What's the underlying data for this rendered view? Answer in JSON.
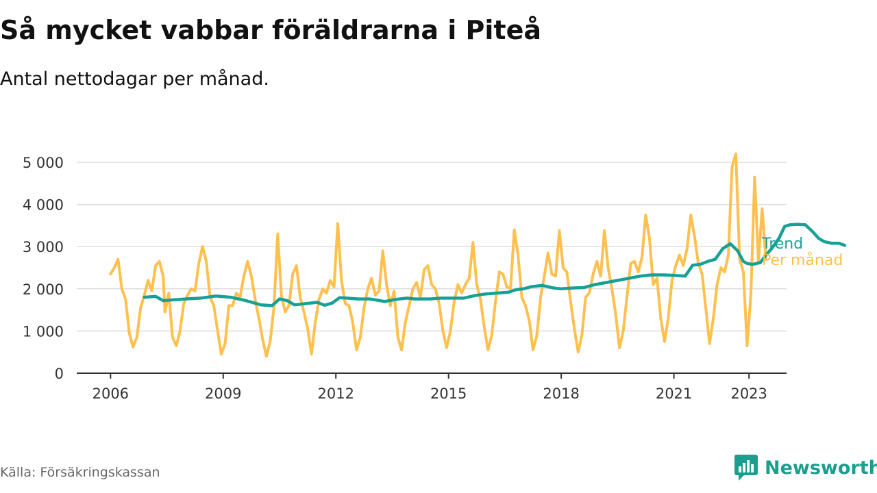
{
  "title": "Så mycket vabbar föräldrarna i Piteå",
  "subtitle": "Antal nettodagar per månad.",
  "source": "Källa: Försäkringskassan",
  "brand": {
    "name": "Newsworthy",
    "icon": "bar-chart-speech-bubble-icon",
    "color": "#1a9e8f"
  },
  "chart_data": {
    "type": "line",
    "x_unit": "year (decimal)",
    "xlim": [
      2005.1,
      2024.0
    ],
    "ylim": [
      0,
      5000
    ],
    "x_ticks": [
      {
        "value": 2006,
        "label": "2006"
      },
      {
        "value": 2009,
        "label": "2009"
      },
      {
        "value": 2012,
        "label": "2012"
      },
      {
        "value": 2015,
        "label": "2015"
      },
      {
        "value": 2018,
        "label": "2018"
      },
      {
        "value": 2021,
        "label": "2021"
      },
      {
        "value": 2023,
        "label": "2023"
      }
    ],
    "y_ticks": [
      {
        "value": 0,
        "label": "0"
      },
      {
        "value": 1000,
        "label": "1 000"
      },
      {
        "value": 2000,
        "label": "2 000"
      },
      {
        "value": 3000,
        "label": "3 000"
      },
      {
        "value": 4000,
        "label": "4 000"
      },
      {
        "value": 5000,
        "label": "5 000"
      }
    ],
    "grid": "horizontal",
    "legend": "inline-right",
    "series": [
      {
        "name": "Per månad",
        "color": "#ffc04d",
        "points": [
          [
            2006.0,
            2350
          ],
          [
            2006.1,
            2500
          ],
          [
            2006.2,
            2700
          ],
          [
            2006.3,
            2000
          ],
          [
            2006.4,
            1750
          ],
          [
            2006.5,
            950
          ],
          [
            2006.6,
            620
          ],
          [
            2006.7,
            850
          ],
          [
            2006.8,
            1550
          ],
          [
            2006.9,
            1850
          ],
          [
            2007.0,
            2200
          ],
          [
            2007.1,
            1950
          ],
          [
            2007.2,
            2550
          ],
          [
            2007.3,
            2650
          ],
          [
            2007.4,
            2300
          ],
          [
            2007.45,
            1450
          ],
          [
            2007.55,
            1900
          ],
          [
            2007.65,
            850
          ],
          [
            2007.75,
            650
          ],
          [
            2007.85,
            1000
          ],
          [
            2007.95,
            1650
          ],
          [
            2008.05,
            1850
          ],
          [
            2008.15,
            2000
          ],
          [
            2008.25,
            1950
          ],
          [
            2008.35,
            2600
          ],
          [
            2008.45,
            3000
          ],
          [
            2008.55,
            2650
          ],
          [
            2008.65,
            1800
          ],
          [
            2008.75,
            1600
          ],
          [
            2008.85,
            1000
          ],
          [
            2008.95,
            450
          ],
          [
            2009.05,
            700
          ],
          [
            2009.15,
            1600
          ],
          [
            2009.25,
            1600
          ],
          [
            2009.35,
            1900
          ],
          [
            2009.45,
            1800
          ],
          [
            2009.55,
            2300
          ],
          [
            2009.65,
            2650
          ],
          [
            2009.75,
            2300
          ],
          [
            2009.85,
            1750
          ],
          [
            2009.95,
            1300
          ],
          [
            2010.05,
            800
          ],
          [
            2010.15,
            400
          ],
          [
            2010.25,
            750
          ],
          [
            2010.35,
            1550
          ],
          [
            2010.45,
            3300
          ],
          [
            2010.55,
            1850
          ],
          [
            2010.65,
            1450
          ],
          [
            2010.75,
            1600
          ],
          [
            2010.85,
            2350
          ],
          [
            2010.95,
            2550
          ],
          [
            2011.05,
            1800
          ],
          [
            2011.15,
            1450
          ],
          [
            2011.25,
            1050
          ],
          [
            2011.35,
            450
          ],
          [
            2011.45,
            1200
          ],
          [
            2011.55,
            1750
          ],
          [
            2011.65,
            2000
          ],
          [
            2011.75,
            1900
          ],
          [
            2011.85,
            2200
          ],
          [
            2011.95,
            2050
          ],
          [
            2012.05,
            3550
          ],
          [
            2012.15,
            2200
          ],
          [
            2012.25,
            1650
          ],
          [
            2012.35,
            1600
          ],
          [
            2012.45,
            1200
          ],
          [
            2012.55,
            550
          ],
          [
            2012.65,
            850
          ],
          [
            2012.75,
            1550
          ],
          [
            2012.85,
            2000
          ],
          [
            2012.95,
            2250
          ],
          [
            2013.05,
            1850
          ],
          [
            2013.15,
            1950
          ],
          [
            2013.25,
            2900
          ],
          [
            2013.35,
            2100
          ],
          [
            2013.45,
            1600
          ],
          [
            2013.55,
            1950
          ],
          [
            2013.65,
            850
          ],
          [
            2013.75,
            550
          ],
          [
            2013.85,
            1200
          ],
          [
            2013.95,
            1600
          ],
          [
            2014.05,
            2000
          ],
          [
            2014.15,
            2150
          ],
          [
            2014.25,
            1800
          ],
          [
            2014.35,
            2450
          ],
          [
            2014.45,
            2550
          ],
          [
            2014.55,
            2100
          ],
          [
            2014.65,
            2000
          ],
          [
            2014.75,
            1650
          ],
          [
            2014.85,
            1000
          ],
          [
            2014.95,
            600
          ],
          [
            2015.05,
            1000
          ],
          [
            2015.15,
            1700
          ],
          [
            2015.25,
            2100
          ],
          [
            2015.35,
            1900
          ],
          [
            2015.45,
            2100
          ],
          [
            2015.55,
            2250
          ],
          [
            2015.65,
            3100
          ],
          [
            2015.75,
            2100
          ],
          [
            2015.85,
            1750
          ],
          [
            2015.95,
            1100
          ],
          [
            2016.05,
            550
          ],
          [
            2016.15,
            900
          ],
          [
            2016.25,
            1700
          ],
          [
            2016.35,
            2400
          ],
          [
            2016.45,
            2350
          ],
          [
            2016.55,
            2050
          ],
          [
            2016.65,
            2000
          ],
          [
            2016.75,
            3400
          ],
          [
            2016.85,
            2800
          ],
          [
            2016.95,
            1800
          ],
          [
            2017.05,
            1600
          ],
          [
            2017.15,
            1250
          ],
          [
            2017.25,
            550
          ],
          [
            2017.35,
            900
          ],
          [
            2017.45,
            1800
          ],
          [
            2017.55,
            2300
          ],
          [
            2017.65,
            2850
          ],
          [
            2017.75,
            2350
          ],
          [
            2017.85,
            2300
          ],
          [
            2017.95,
            3380
          ],
          [
            2018.05,
            2500
          ],
          [
            2018.15,
            2400
          ],
          [
            2018.25,
            1700
          ],
          [
            2018.35,
            1050
          ],
          [
            2018.45,
            500
          ],
          [
            2018.55,
            900
          ],
          [
            2018.65,
            1800
          ],
          [
            2018.75,
            1900
          ],
          [
            2018.85,
            2350
          ],
          [
            2018.95,
            2650
          ],
          [
            2019.05,
            2300
          ],
          [
            2019.15,
            3380
          ],
          [
            2019.25,
            2500
          ],
          [
            2019.35,
            2000
          ],
          [
            2019.45,
            1400
          ],
          [
            2019.55,
            600
          ],
          [
            2019.65,
            1000
          ],
          [
            2019.75,
            1800
          ],
          [
            2019.85,
            2600
          ],
          [
            2019.95,
            2650
          ],
          [
            2020.05,
            2400
          ],
          [
            2020.15,
            2750
          ],
          [
            2020.25,
            3750
          ],
          [
            2020.35,
            3200
          ],
          [
            2020.45,
            2100
          ],
          [
            2020.55,
            2250
          ],
          [
            2020.65,
            1300
          ],
          [
            2020.75,
            750
          ],
          [
            2020.85,
            1300
          ],
          [
            2020.95,
            2200
          ],
          [
            2021.05,
            2550
          ],
          [
            2021.15,
            2800
          ],
          [
            2021.25,
            2550
          ],
          [
            2021.35,
            2950
          ],
          [
            2021.45,
            3750
          ],
          [
            2021.55,
            3250
          ],
          [
            2021.65,
            2600
          ],
          [
            2021.75,
            2350
          ],
          [
            2021.85,
            1550
          ],
          [
            2021.95,
            700
          ],
          [
            2022.05,
            1300
          ],
          [
            2022.15,
            2100
          ],
          [
            2022.25,
            2500
          ],
          [
            2022.35,
            2400
          ],
          [
            2022.45,
            2800
          ],
          [
            2022.55,
            4900
          ],
          [
            2022.65,
            5200
          ],
          [
            2022.75,
            2700
          ],
          [
            2022.85,
            2400
          ],
          [
            2022.95,
            650
          ],
          [
            2023.05,
            1850
          ],
          [
            2023.15,
            4650
          ],
          [
            2023.25,
            2650
          ],
          [
            2023.35,
            3900
          ],
          [
            2023.45,
            2700
          ]
        ]
      },
      {
        "name": "Trend",
        "color": "#17a096",
        "points": [
          [
            2006.9,
            1800
          ],
          [
            2007.2,
            1820
          ],
          [
            2007.4,
            1720
          ],
          [
            2008.0,
            1760
          ],
          [
            2008.4,
            1780
          ],
          [
            2008.8,
            1830
          ],
          [
            2009.2,
            1800
          ],
          [
            2009.6,
            1720
          ],
          [
            2010.0,
            1620
          ],
          [
            2010.3,
            1600
          ],
          [
            2010.5,
            1760
          ],
          [
            2010.7,
            1720
          ],
          [
            2010.9,
            1620
          ],
          [
            2011.2,
            1650
          ],
          [
            2011.5,
            1680
          ],
          [
            2011.7,
            1610
          ],
          [
            2011.9,
            1660
          ],
          [
            2012.1,
            1790
          ],
          [
            2012.3,
            1780
          ],
          [
            2012.6,
            1760
          ],
          [
            2012.9,
            1760
          ],
          [
            2013.1,
            1730
          ],
          [
            2013.3,
            1700
          ],
          [
            2013.6,
            1750
          ],
          [
            2013.9,
            1780
          ],
          [
            2014.1,
            1760
          ],
          [
            2014.5,
            1760
          ],
          [
            2014.8,
            1780
          ],
          [
            2015.1,
            1780
          ],
          [
            2015.4,
            1780
          ],
          [
            2015.7,
            1840
          ],
          [
            2016.0,
            1880
          ],
          [
            2016.3,
            1900
          ],
          [
            2016.6,
            1920
          ],
          [
            2016.8,
            1980
          ],
          [
            2017.0,
            2000
          ],
          [
            2017.2,
            2050
          ],
          [
            2017.5,
            2080
          ],
          [
            2017.8,
            2020
          ],
          [
            2018.0,
            2000
          ],
          [
            2018.3,
            2020
          ],
          [
            2018.6,
            2030
          ],
          [
            2018.9,
            2100
          ],
          [
            2019.2,
            2150
          ],
          [
            2019.5,
            2200
          ],
          [
            2019.8,
            2250
          ],
          [
            2020.1,
            2300
          ],
          [
            2020.4,
            2330
          ],
          [
            2020.7,
            2330
          ],
          [
            2021.0,
            2320
          ],
          [
            2021.3,
            2300
          ],
          [
            2021.5,
            2560
          ],
          [
            2021.7,
            2580
          ],
          [
            2021.9,
            2650
          ],
          [
            2022.1,
            2700
          ],
          [
            2022.3,
            2950
          ],
          [
            2022.5,
            3070
          ],
          [
            2022.7,
            2900
          ],
          [
            2022.85,
            2650
          ],
          [
            2022.95,
            2600
          ],
          [
            2023.1,
            2580
          ],
          [
            2023.3,
            2620
          ],
          [
            2023.45,
            2800
          ],
          [
            2023.6,
            2950
          ],
          [
            2023.8,
            3200
          ],
          [
            2023.95,
            3480
          ],
          [
            2024.1,
            3520
          ],
          [
            2024.3,
            3530
          ],
          [
            2024.5,
            3520
          ],
          [
            2024.7,
            3350
          ],
          [
            2024.85,
            3200
          ],
          [
            2025.0,
            3120
          ],
          [
            2025.2,
            3080
          ],
          [
            2025.4,
            3080
          ],
          [
            2025.55,
            3030
          ]
        ]
      }
    ]
  }
}
